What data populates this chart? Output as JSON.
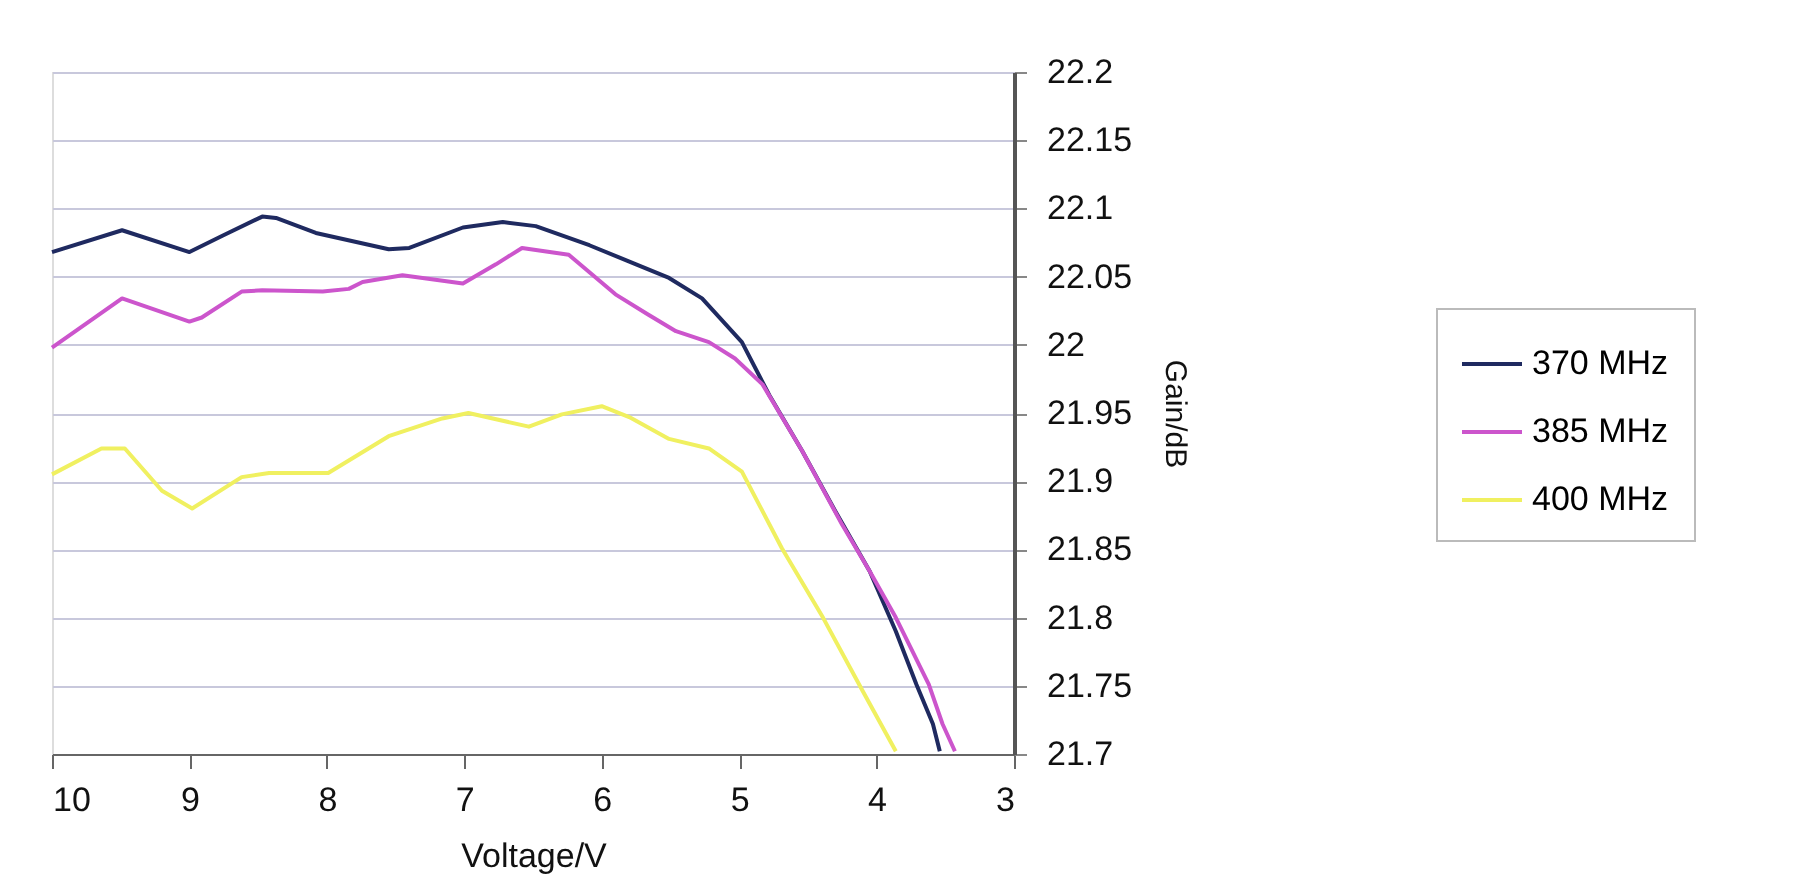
{
  "chart_data": {
    "type": "line",
    "xlabel": "Voltage/V",
    "ylabel": "Gain/dB",
    "xlim": [
      10,
      3
    ],
    "xticks": [
      10,
      9,
      8,
      7,
      6,
      5,
      4,
      3
    ],
    "ylim": [
      21.7,
      22.2
    ],
    "yticks": [
      21.7,
      21.75,
      21.8,
      21.85,
      21.9,
      21.95,
      22,
      22.05,
      22.1,
      22.15,
      22.2
    ],
    "grid": "y",
    "legend": "right",
    "line_style": "solid",
    "series": [
      {
        "name": "370 MHz",
        "color": "#1f2a60",
        "x": [
          10,
          9.49,
          9.0,
          8.76,
          8.47,
          8.37,
          8.08,
          7.55,
          7.4,
          7.01,
          6.72,
          6.48,
          6.09,
          5.75,
          5.51,
          5.27,
          4.98,
          4.78,
          4.54,
          4.3,
          4.05,
          3.86,
          3.71,
          3.59,
          3.54
        ],
        "values": [
          22.068,
          22.084,
          22.068,
          22.08,
          22.094,
          22.093,
          22.082,
          22.07,
          22.071,
          22.086,
          22.09,
          22.087,
          22.073,
          22.059,
          22.049,
          22.034,
          22.002,
          21.963,
          21.922,
          21.878,
          21.834,
          21.79,
          21.751,
          21.722,
          21.702
        ]
      },
      {
        "name": "385 MHz",
        "color": "#cc55cc",
        "x": [
          10,
          9.49,
          9.0,
          8.91,
          8.62,
          8.47,
          8.03,
          7.84,
          7.74,
          7.45,
          7.01,
          6.77,
          6.58,
          6.24,
          5.9,
          5.66,
          5.46,
          5.22,
          5.03,
          4.83,
          4.54,
          4.25,
          4.05,
          3.86,
          3.62,
          3.52,
          3.43
        ],
        "values": [
          21.998,
          22.034,
          22.017,
          22.02,
          22.039,
          22.04,
          22.039,
          22.041,
          22.046,
          22.051,
          22.045,
          22.059,
          22.071,
          22.066,
          22.037,
          22.022,
          22.01,
          22.002,
          21.99,
          21.971,
          21.922,
          21.868,
          21.834,
          21.8,
          21.751,
          21.722,
          21.702
        ]
      },
      {
        "name": "400 MHz",
        "color": "#f0f060",
        "x": [
          10,
          9.64,
          9.47,
          9.2,
          8.98,
          8.62,
          8.42,
          7.99,
          7.55,
          7.16,
          6.97,
          6.53,
          6.29,
          6.0,
          5.8,
          5.51,
          5.22,
          4.98,
          4.69,
          4.39,
          4.1,
          3.86
        ],
        "values": [
          21.905,
          21.924,
          21.924,
          21.893,
          21.88,
          21.903,
          21.906,
          21.906,
          21.933,
          21.946,
          21.95,
          21.94,
          21.949,
          21.955,
          21.947,
          21.931,
          21.924,
          21.907,
          21.851,
          21.8,
          21.746,
          21.702
        ]
      }
    ]
  }
}
